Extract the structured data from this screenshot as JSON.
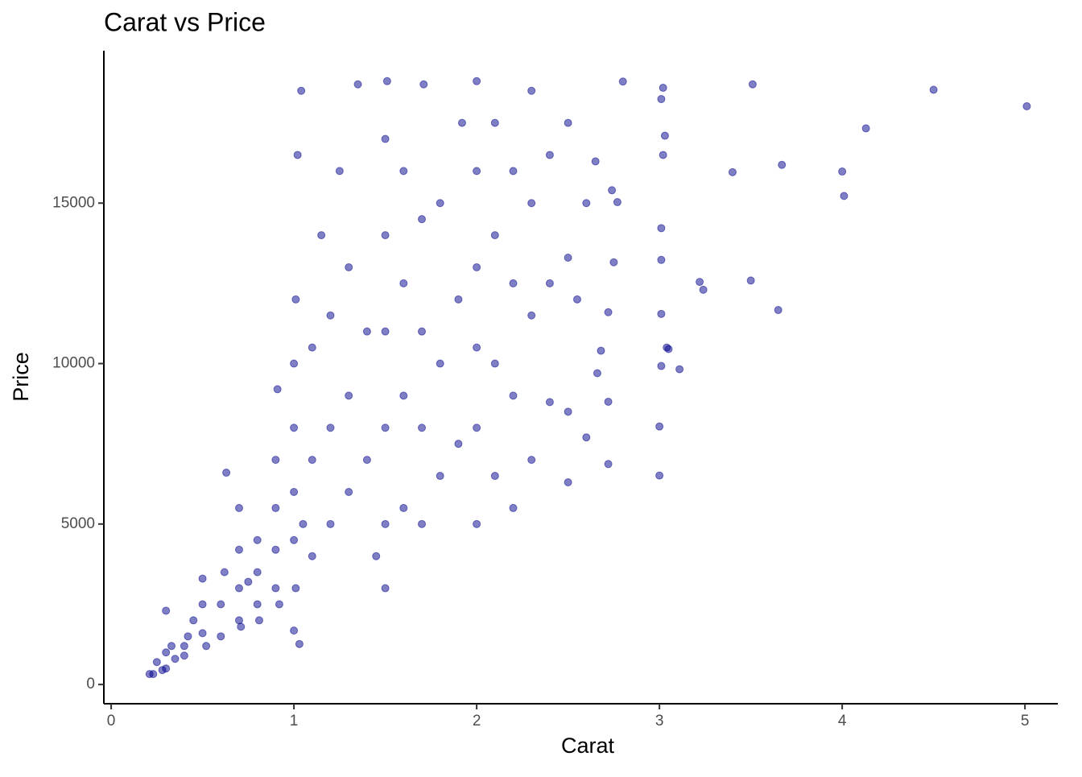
{
  "chart_data": {
    "type": "scatter",
    "title": "Carat vs Price",
    "xlabel": "Carat",
    "ylabel": "Price",
    "x": [
      0.23,
      0.21,
      0.3,
      0.25,
      0.3,
      0.3,
      0.33,
      0.28,
      0.35,
      0.4,
      0.4,
      0.42,
      0.45,
      0.5,
      0.5,
      0.5,
      0.52,
      0.6,
      0.6,
      0.62,
      0.63,
      0.7,
      0.7,
      0.7,
      0.7,
      0.71,
      0.75,
      0.8,
      0.8,
      0.8,
      0.81,
      0.9,
      0.9,
      0.9,
      0.9,
      0.91,
      0.92,
      1.0,
      1.01,
      1.0,
      1.0,
      1.0,
      1.0,
      1.01,
      1.02,
      1.03,
      1.04,
      1.05,
      1.1,
      1.1,
      1.1,
      1.15,
      1.2,
      1.2,
      1.2,
      1.25,
      1.3,
      1.3,
      1.3,
      1.35,
      1.4,
      1.4,
      1.45,
      1.5,
      1.5,
      1.5,
      1.5,
      1.5,
      1.5,
      1.51,
      1.6,
      1.6,
      1.6,
      1.6,
      1.7,
      1.7,
      1.7,
      1.7,
      1.71,
      1.8,
      1.8,
      1.8,
      1.9,
      1.9,
      1.92,
      2.0,
      2.0,
      2.0,
      2.0,
      2.0,
      2.0,
      2.1,
      2.1,
      2.1,
      2.1,
      2.2,
      2.2,
      2.2,
      2.2,
      2.3,
      2.3,
      2.3,
      2.3,
      2.4,
      2.4,
      2.4,
      2.5,
      2.5,
      2.5,
      2.5,
      2.55,
      2.6,
      2.65,
      2.6,
      2.66,
      2.68,
      2.72,
      2.72,
      2.72,
      2.74,
      2.75,
      2.77,
      2.8,
      3.0,
      3.0,
      3.01,
      3.01,
      3.01,
      3.01,
      3.01,
      3.02,
      3.02,
      3.03,
      3.04,
      3.05,
      3.11,
      3.22,
      3.24,
      3.4,
      3.5,
      3.51,
      3.65,
      3.67,
      4.0,
      4.01,
      4.13,
      4.5,
      5.01
    ],
    "y": [
      326,
      326,
      500,
      700,
      1000,
      2300,
      1200,
      450,
      800,
      900,
      1200,
      1500,
      2000,
      1600,
      2500,
      3300,
      1200,
      1500,
      2500,
      3500,
      6600,
      2000,
      3000,
      4200,
      5500,
      1800,
      3200,
      2500,
      3500,
      4500,
      2000,
      3000,
      4200,
      5500,
      7000,
      9200,
      2500,
      1681,
      3000,
      4500,
      6000,
      8000,
      10000,
      12000,
      16500,
      1262,
      18500,
      5000,
      4000,
      7000,
      10500,
      14000,
      5000,
      8000,
      11500,
      16000,
      6000,
      9000,
      13000,
      18700,
      7000,
      11000,
      4000,
      3000,
      5000,
      8000,
      11000,
      14000,
      17000,
      18800,
      5500,
      9000,
      12500,
      16000,
      5000,
      8000,
      11000,
      14500,
      18700,
      6500,
      10000,
      15000,
      7500,
      12000,
      17500,
      5000,
      8000,
      10500,
      13000,
      16000,
      18800,
      6500,
      10000,
      14000,
      17500,
      5500,
      9000,
      12500,
      16000,
      7000,
      11500,
      15000,
      18500,
      8800,
      12500,
      16500,
      6300,
      8500,
      13300,
      17500,
      12000,
      15000,
      16300,
      7700,
      9700,
      10400,
      11600,
      8810,
      6870,
      15400,
      13156,
      15030,
      18788,
      6512,
      8040,
      9925,
      11548,
      13230,
      14220,
      18242,
      16500,
      18593,
      17100,
      10500,
      10453,
      9823,
      12545,
      12300,
      15964,
      12587,
      18701,
      11668,
      16193,
      15984,
      15223,
      17329,
      18531,
      18018
    ],
    "color": "#00008b",
    "xlim": [
      -0.04,
      5.18
    ],
    "xticks": [
      0,
      1,
      2,
      3,
      4,
      5
    ],
    "ylim": [
      -599,
      19748
    ],
    "yticks": [
      0,
      5000,
      10000,
      15000
    ]
  }
}
